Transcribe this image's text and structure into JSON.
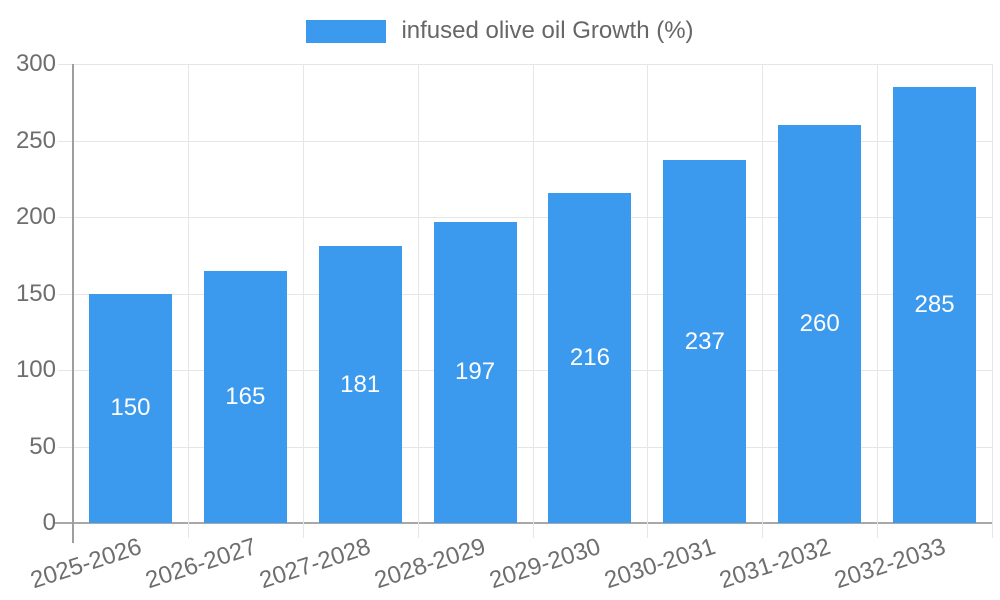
{
  "legend": {
    "label": "infused olive oil Growth (%)"
  },
  "chart_data": {
    "type": "bar",
    "title": "",
    "legend": "infused olive oil Growth (%)",
    "legend_position": "top-center",
    "categories": [
      "2025-2026",
      "2026-2027",
      "2027-2028",
      "2028-2029",
      "2029-2030",
      "2030-2031",
      "2031-2032",
      "2032-2033"
    ],
    "values": [
      150,
      165,
      181,
      197,
      216,
      237,
      260,
      285
    ],
    "value_labels": [
      "150",
      "165",
      "181",
      "197",
      "216",
      "237",
      "260",
      "285"
    ],
    "xlabel": "",
    "ylabel": "",
    "ylim": [
      0,
      300
    ],
    "yticks": [
      0,
      50,
      100,
      150,
      200,
      250,
      300
    ],
    "grid": true,
    "colors": {
      "bar": "#3b99ee",
      "value_label": "#ffffff",
      "axis_text": "#6e6e6e",
      "legend_text": "#666666",
      "gridline": "#e6e6e6",
      "axis_line": "#a8a8a8",
      "background": "#ffffff"
    }
  }
}
